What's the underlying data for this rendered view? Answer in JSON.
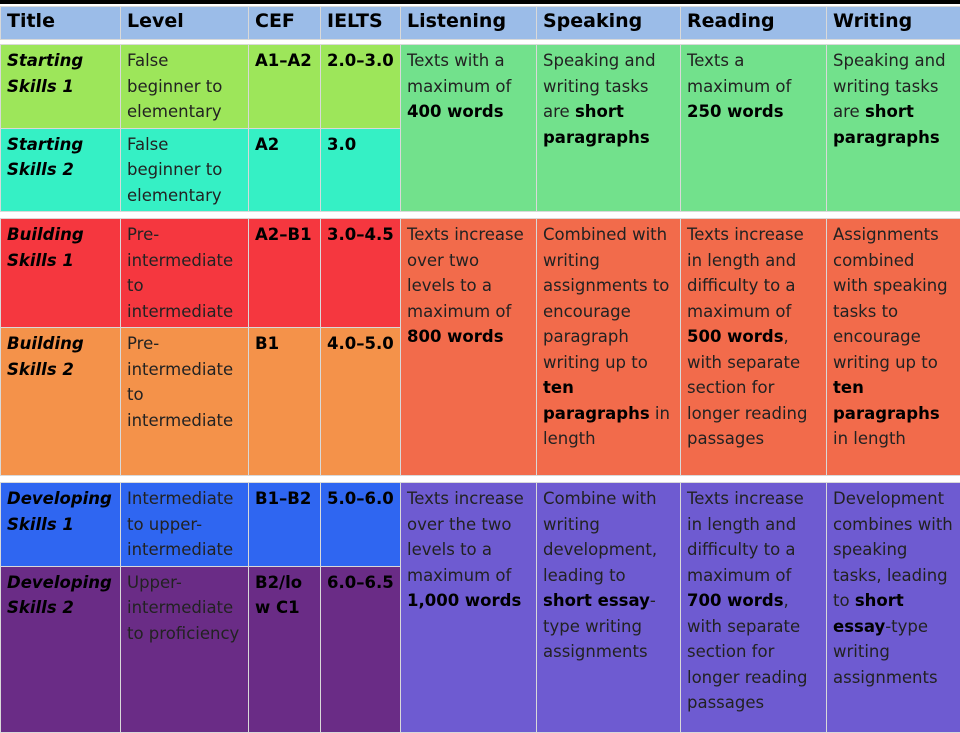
{
  "headers": [
    "Title",
    "Level",
    "CEF",
    "IELTS",
    "Listening",
    "Speaking",
    "Reading",
    "Writing"
  ],
  "groups": [
    {
      "rows": [
        {
          "title": "Starting Skills 1",
          "level": "False beginner to elementary",
          "cef": "A1–A2",
          "ielts": "2.0–3.0"
        },
        {
          "title": "Starting Skills 2",
          "level": "False beginner to elementary",
          "cef": "A2",
          "ielts": "3.0"
        }
      ],
      "listening": {
        "pre": "Texts with a maximum of ",
        "b1": "400 words",
        "post": ""
      },
      "speaking": {
        "pre": "Speaking and writing tasks are ",
        "b1": "short paragraphs",
        "mid": "",
        "b2": "",
        "post": ""
      },
      "reading": {
        "pre": "Texts a maximum of ",
        "b1": "250 words",
        "post": ""
      },
      "writing": {
        "pre": "Speaking and writing tasks are ",
        "b1": "short paragraphs",
        "mid": "",
        "b2": "",
        "post": ""
      }
    },
    {
      "rows": [
        {
          "title": "Building Skills 1",
          "level": "Pre-intermediate to intermediate",
          "cef": "A2–B1",
          "ielts": "3.0–4.5"
        },
        {
          "title": "Building Skills 2",
          "level": "Pre-intermediate to intermediate",
          "cef": "B1",
          "ielts": "4.0–5.0"
        }
      ],
      "listening": {
        "pre": "Texts increase over two levels to a maximum of ",
        "b1": "800 words",
        "post": ""
      },
      "speaking": {
        "pre": "Combined with writing assignments to encourage paragraph writing up to ",
        "b1": "ten paragraphs",
        "mid": " in length",
        "b2": "",
        "post": ""
      },
      "reading": {
        "pre": "Texts increase in length and difficulty to a maximum of ",
        "b1": "500 words",
        "post": ", with separate section for longer reading passages"
      },
      "writing": {
        "pre": "Assignments combined with speaking tasks to encourage writing up to ",
        "b1": "ten paragraphs",
        "mid": " in length",
        "b2": "",
        "post": ""
      }
    },
    {
      "rows": [
        {
          "title": "Developing Skills 1",
          "level": "Intermediate to upper-intermediate",
          "cef": "B1–B2",
          "ielts": "5.0–6.0"
        },
        {
          "title": "Developing Skills 2",
          "level": "Upper-intermediate to proficiency",
          "cef": "B2/low C1",
          "ielts": "6.0–6.5"
        }
      ],
      "listening": {
        "pre": "Texts increase over the two levels to a maximum of ",
        "b1": "1,000 words",
        "post": ""
      },
      "speaking": {
        "pre": "Combine with writing development, leading to ",
        "b1": "short essay",
        "mid": "-type writing assignments",
        "b2": "",
        "post": ""
      },
      "reading": {
        "pre": "Texts increase in length and difficulty to a maximum of ",
        "b1": "700 words",
        "post": ", with separate section for longer reading passages"
      },
      "writing": {
        "pre": "Development combines with speaking tasks, leading to ",
        "b1": "short essay",
        "mid": "-type writing assignments",
        "b2": "",
        "post": ""
      }
    }
  ],
  "colors": {
    "header": "#9bbce8",
    "starting_1": "#9de65a",
    "starting_2": "#35f0c5",
    "starting_merged": "#72e18c",
    "building_1": "#f5373f",
    "building_2": "#f4924a",
    "building_merged": "#f26b4b",
    "developing_1": "#2f66f1",
    "developing_2": "#6a2c86",
    "developing_merged": "#6e5bd1"
  }
}
